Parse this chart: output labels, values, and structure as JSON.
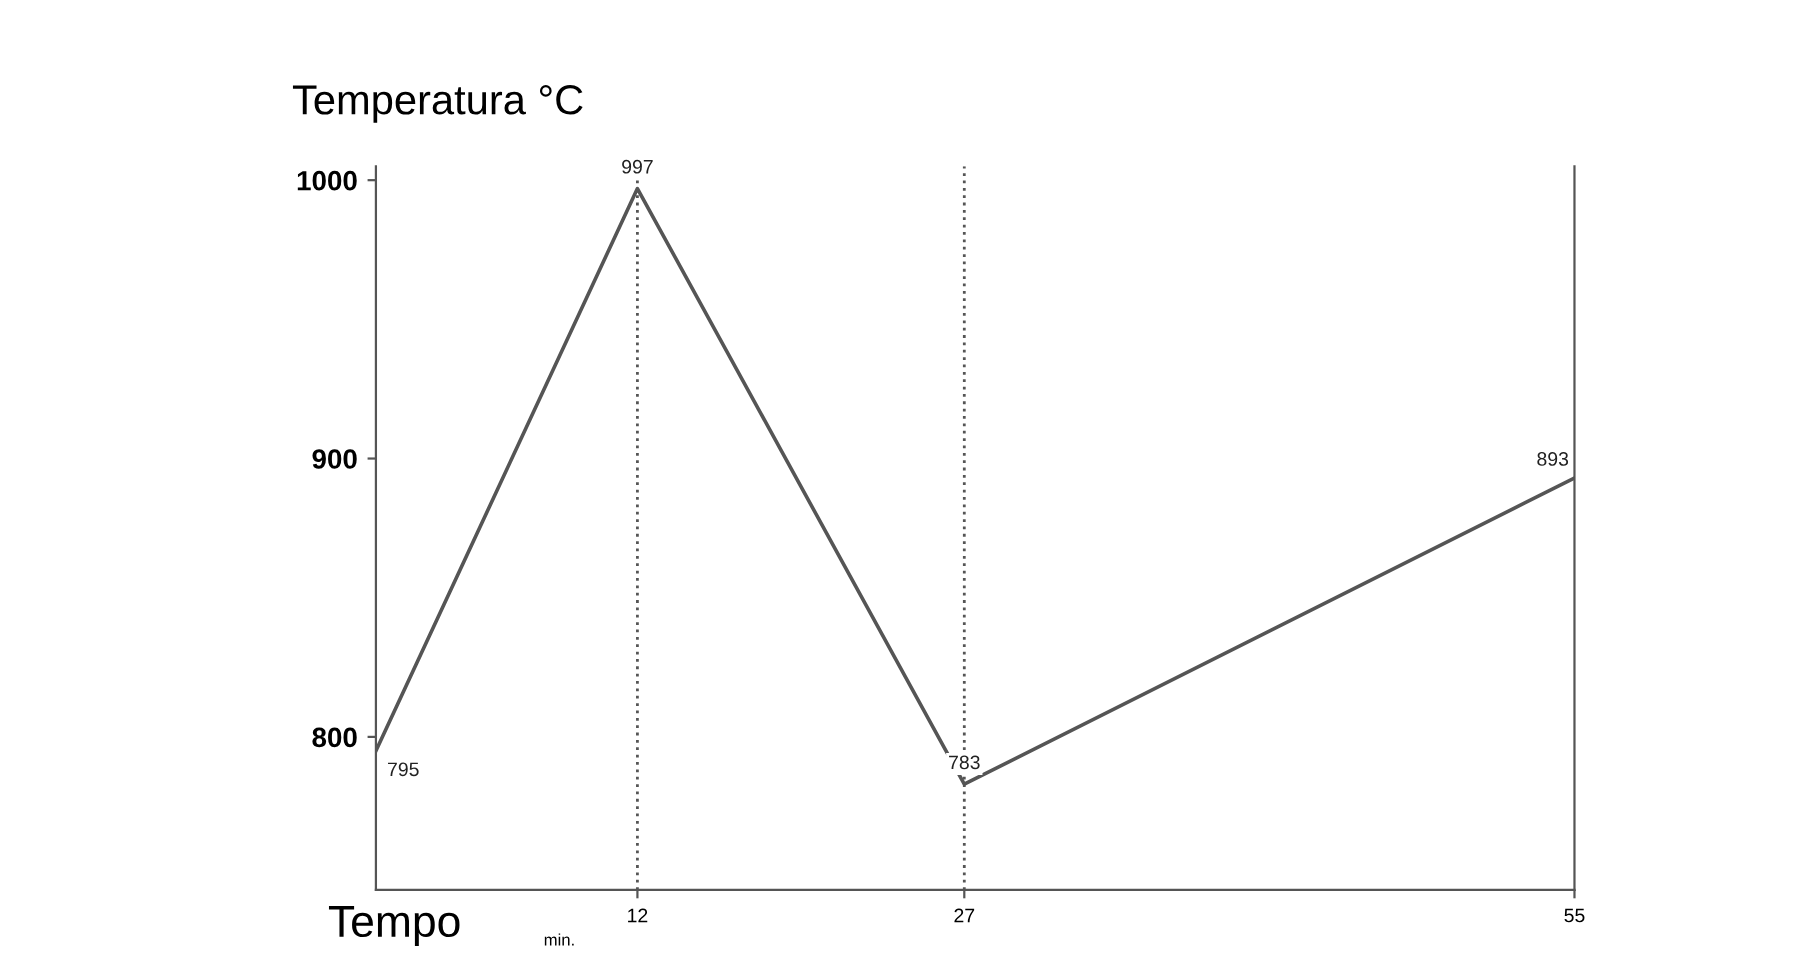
{
  "chart_data": {
    "type": "line",
    "ylabel": "Temperatura °C",
    "xlabel": "Tempo",
    "annotations": [
      "min."
    ],
    "x": [
      0,
      12,
      27,
      55
    ],
    "series": [
      {
        "color": "#555555",
        "values": [
          795,
          997,
          783,
          893
        ]
      }
    ],
    "data_labels": true,
    "xlim": [
      0,
      55
    ],
    "ylim": [
      745,
      1005
    ],
    "xticks": [
      12,
      27,
      55
    ],
    "yticks": [
      800,
      900,
      1000
    ],
    "ref_lines": [
      {
        "axis": "x",
        "value": 12,
        "line_style": "dotted"
      },
      {
        "axis": "x",
        "value": 27,
        "line_style": "dotted"
      }
    ],
    "grid": false,
    "legend": false,
    "marker": "none",
    "line_style": "solid"
  }
}
